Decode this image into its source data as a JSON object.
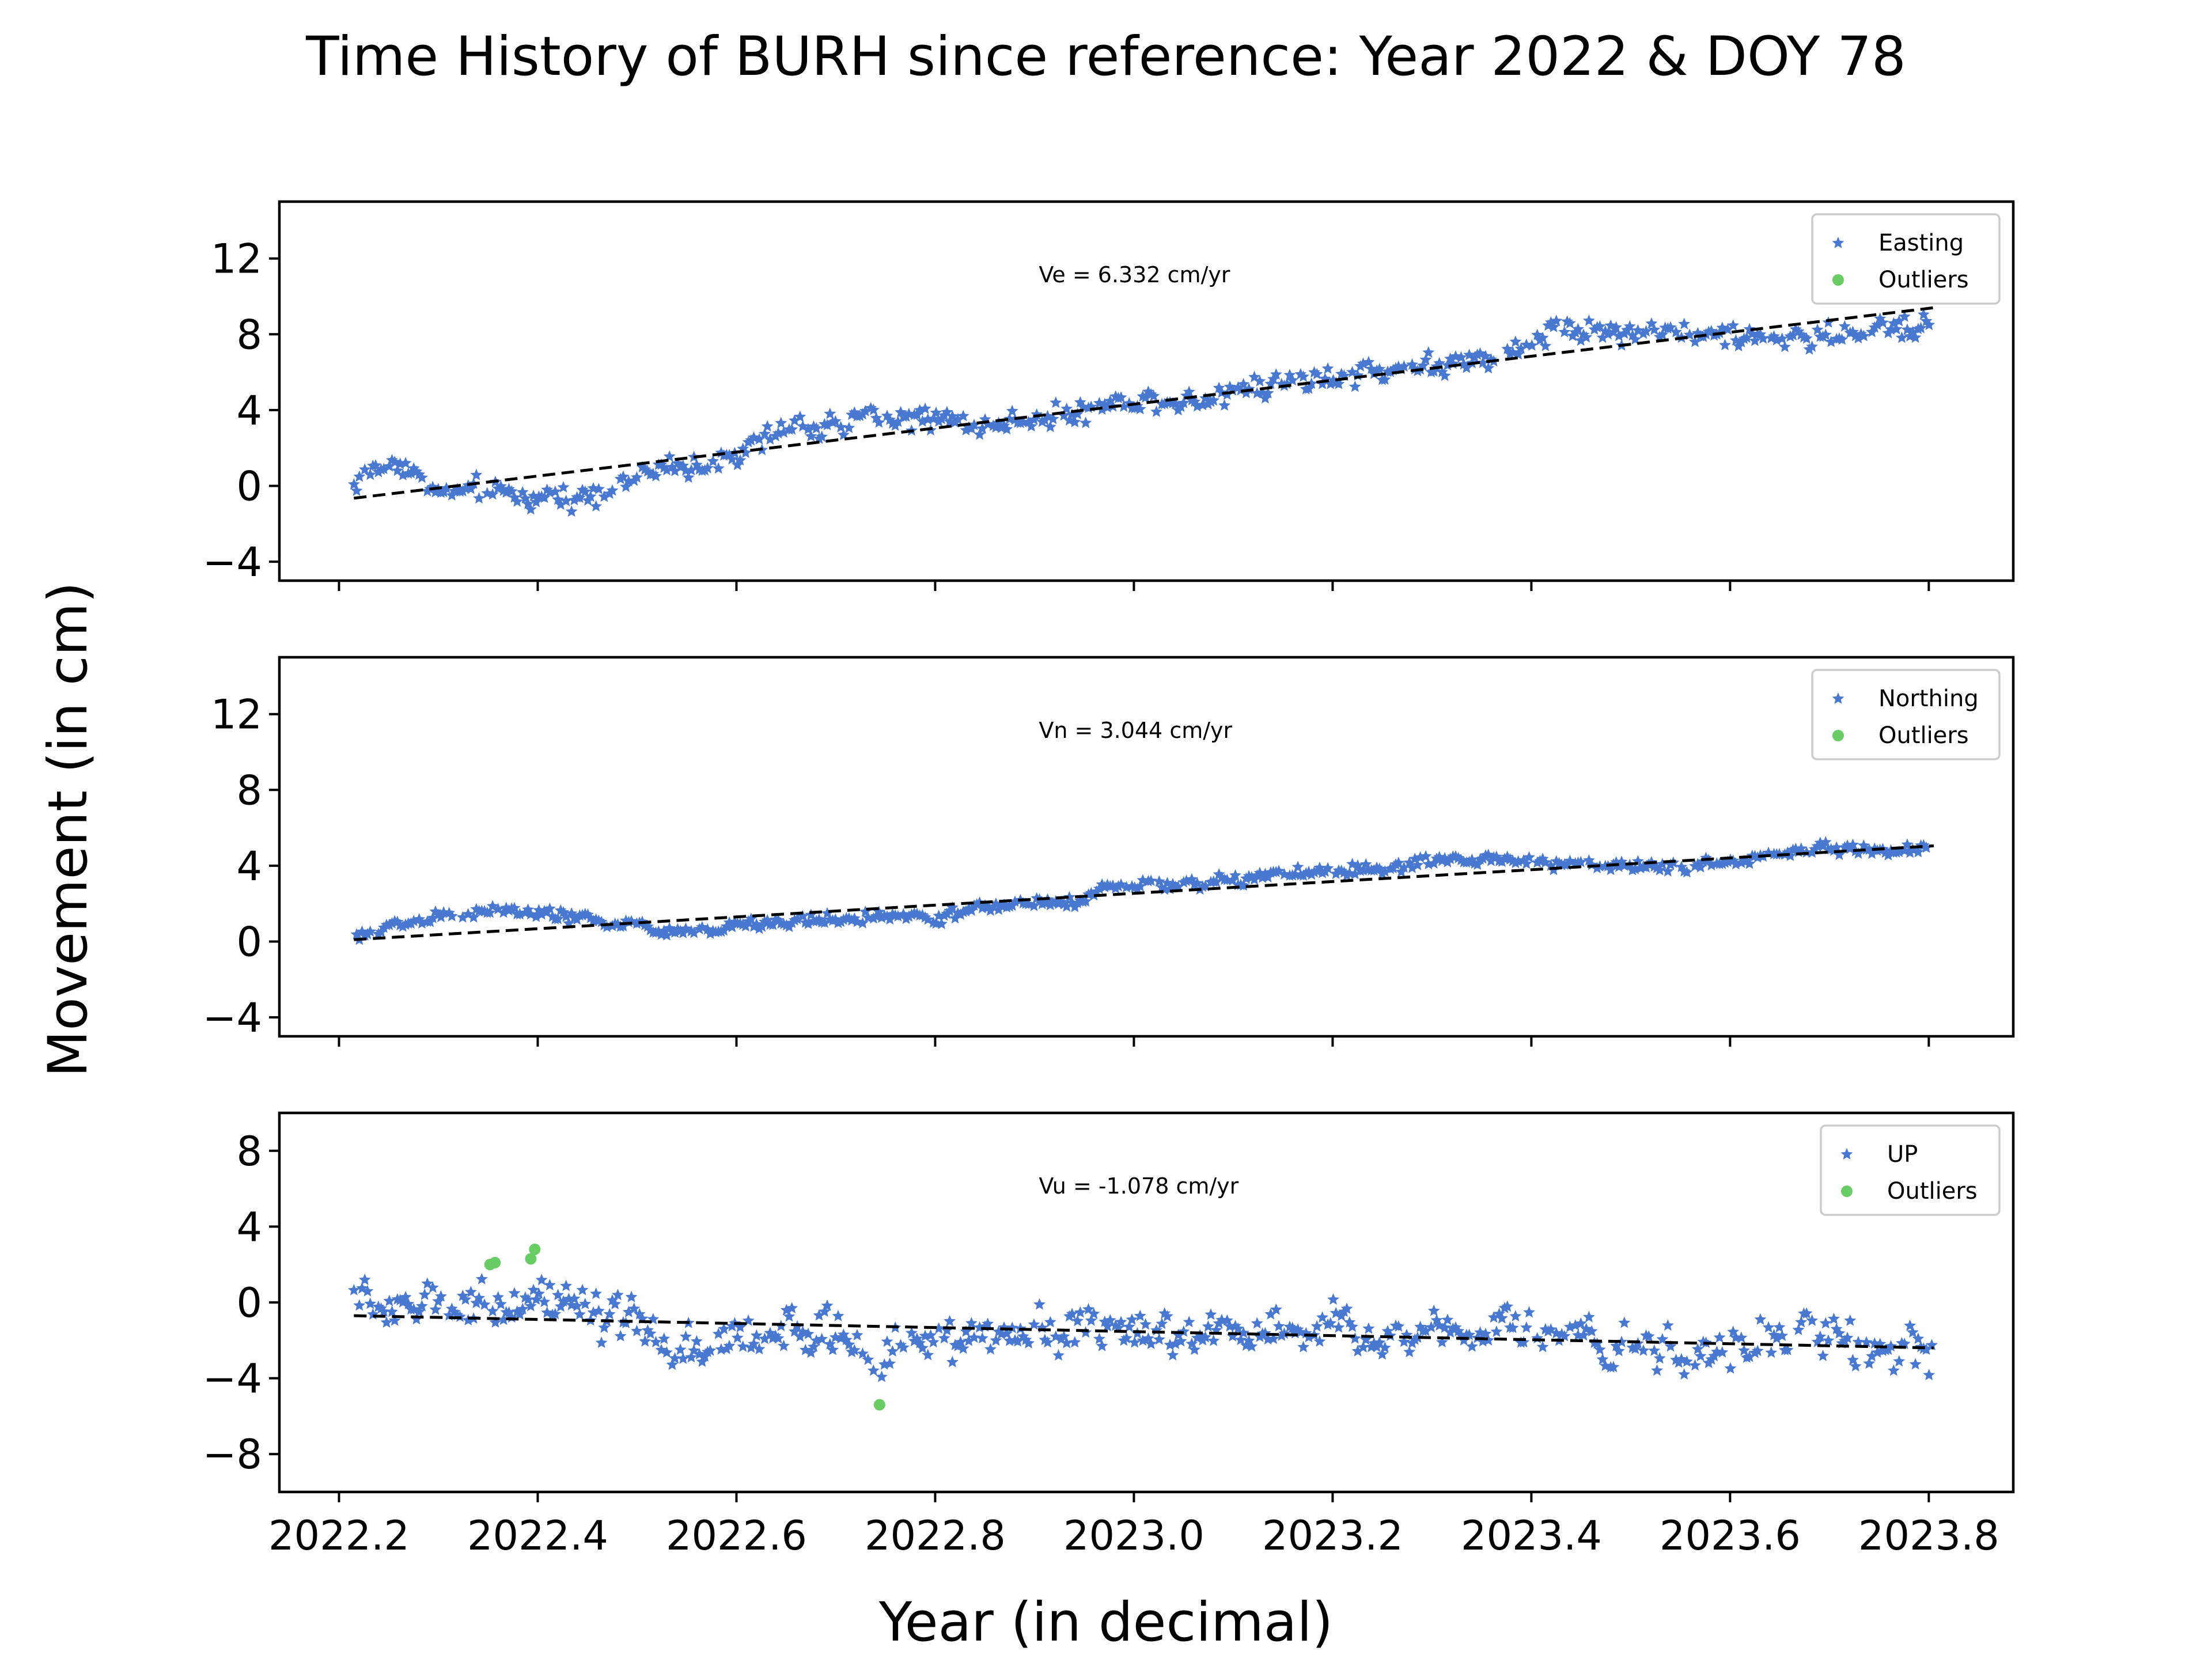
{
  "figure": {
    "title": "Time History of BURH since reference: Year 2022 & DOY 78",
    "xlabel": "Year (in decimal)",
    "ylabel": "Movement (in cm)"
  },
  "colors": {
    "data": "#4878d0",
    "outlier": "#6acc64",
    "trend": "#000000"
  },
  "chart_data": [
    {
      "type": "scatter",
      "panel": "easting",
      "xlim": [
        2022.14,
        2023.885
      ],
      "ylim": [
        -5,
        15
      ],
      "xticks": [
        2022.2,
        2022.4,
        2022.6,
        2022.8,
        2023.0,
        2023.2,
        2023.4,
        2023.6,
        2023.8
      ],
      "yticks": [
        -4,
        0,
        4,
        8,
        12
      ],
      "ytick_labels": [
        "−4",
        "0",
        "4",
        "8",
        "12"
      ],
      "show_xtick_labels": false,
      "annotation": "Ve =  6.332 cm/yr",
      "legend": [
        "Easting",
        "Outliers"
      ],
      "legend_position": "top-right",
      "trend": {
        "x": [
          2022.215,
          2023.805
        ],
        "y": [
          -0.65,
          9.4
        ]
      },
      "series_profile": {
        "x": [
          2022.215,
          2022.24,
          2022.26,
          2022.3,
          2022.35,
          2022.4,
          2022.45,
          2022.5,
          2022.55,
          2022.6,
          2022.65,
          2022.7,
          2022.75,
          2022.8,
          2022.85,
          2022.9,
          2022.95,
          2023.0,
          2023.05,
          2023.1,
          2023.15,
          2023.2,
          2023.25,
          2023.3,
          2023.35,
          2023.4,
          2023.43,
          2023.45,
          2023.5,
          2023.55,
          2023.6,
          2023.65,
          2023.7,
          2023.75,
          2023.805
        ],
        "y": [
          0.2,
          0.8,
          1.4,
          -0.4,
          -0.4,
          -0.6,
          -0.4,
          0.5,
          1.1,
          1.6,
          2.9,
          3.3,
          3.8,
          3.5,
          3.1,
          3.7,
          3.9,
          4.6,
          4.6,
          5.1,
          5.5,
          5.9,
          6.0,
          6.4,
          6.6,
          7.4,
          8.6,
          8.1,
          8.3,
          8.0,
          7.9,
          7.7,
          7.9,
          8.3,
          8.6
        ]
      },
      "noise": 0.45,
      "outliers": []
    },
    {
      "type": "scatter",
      "panel": "northing",
      "xlim": [
        2022.14,
        2023.885
      ],
      "ylim": [
        -5,
        15
      ],
      "xticks": [
        2022.2,
        2022.4,
        2022.6,
        2022.8,
        2023.0,
        2023.2,
        2023.4,
        2023.6,
        2023.8
      ],
      "yticks": [
        -4,
        0,
        4,
        8,
        12
      ],
      "ytick_labels": [
        "−4",
        "0",
        "4",
        "8",
        "12"
      ],
      "show_xtick_labels": false,
      "annotation": "Vn =  3.044 cm/yr",
      "legend": [
        "Northing",
        "Outliers"
      ],
      "legend_position": "top-right",
      "trend": {
        "x": [
          2022.215,
          2023.805
        ],
        "y": [
          0.1,
          5.05
        ]
      },
      "series_profile": {
        "x": [
          2022.215,
          2022.25,
          2022.3,
          2022.35,
          2022.4,
          2022.45,
          2022.5,
          2022.55,
          2022.6,
          2022.65,
          2022.7,
          2022.75,
          2022.8,
          2022.85,
          2022.9,
          2022.95,
          2022.97,
          2023.0,
          2023.05,
          2023.1,
          2023.15,
          2023.2,
          2023.25,
          2023.3,
          2023.35,
          2023.4,
          2023.45,
          2023.5,
          2023.55,
          2023.6,
          2023.65,
          2023.7,
          2023.75,
          2023.805
        ],
        "y": [
          0.1,
          0.9,
          1.3,
          1.6,
          1.5,
          1.2,
          0.8,
          0.5,
          0.8,
          1.0,
          1.2,
          1.4,
          1.2,
          1.8,
          2.1,
          2.1,
          3.0,
          2.9,
          3.0,
          3.2,
          3.5,
          3.7,
          3.8,
          4.1,
          4.4,
          4.2,
          4.1,
          4.0,
          3.7,
          4.3,
          4.6,
          4.9,
          4.8,
          4.9
        ]
      },
      "noise": 0.22,
      "outliers": []
    },
    {
      "type": "scatter",
      "panel": "up",
      "xlim": [
        2022.14,
        2023.885
      ],
      "ylim": [
        -10,
        10
      ],
      "xticks": [
        2022.2,
        2022.4,
        2022.6,
        2022.8,
        2023.0,
        2023.2,
        2023.4,
        2023.6,
        2023.8
      ],
      "xtick_labels": [
        "2022.2",
        "2022.4",
        "2022.6",
        "2022.8",
        "2023.0",
        "2023.2",
        "2023.4",
        "2023.6",
        "2023.8"
      ],
      "yticks": [
        -8,
        -4,
        0,
        4,
        8
      ],
      "ytick_labels": [
        "−8",
        "−4",
        "0",
        "4",
        "8"
      ],
      "show_xtick_labels": true,
      "annotation": "Vu = -1.078 cm/yr",
      "legend": [
        "UP",
        "Outliers"
      ],
      "legend_position": "top-right",
      "trend": {
        "x": [
          2022.215,
          2023.805
        ],
        "y": [
          -0.7,
          -2.4
        ]
      },
      "series_profile": {
        "x": [
          2022.215,
          2022.25,
          2022.3,
          2022.35,
          2022.4,
          2022.45,
          2022.5,
          2022.55,
          2022.6,
          2022.65,
          2022.7,
          2022.75,
          2022.8,
          2022.85,
          2022.9,
          2022.95,
          2023.0,
          2023.05,
          2023.1,
          2023.15,
          2023.2,
          2023.25,
          2023.3,
          2023.35,
          2023.4,
          2023.45,
          2023.5,
          2023.55,
          2023.6,
          2023.65,
          2023.7,
          2023.75,
          2023.805
        ],
        "y": [
          0.3,
          -0.3,
          0.0,
          0.2,
          0.0,
          -0.8,
          -1.3,
          -2.3,
          -1.9,
          -1.4,
          -1.8,
          -2.8,
          -2.2,
          -1.6,
          -1.5,
          -1.2,
          -1.8,
          -1.6,
          -1.4,
          -1.2,
          -1.0,
          -1.7,
          -1.3,
          -1.0,
          -1.3,
          -2.0,
          -2.0,
          -2.9,
          -2.7,
          -2.2,
          -1.6,
          -2.6,
          -3.0
        ]
      },
      "noise": 0.85,
      "outliers": [
        {
          "x": 2022.352,
          "y": 2.0
        },
        {
          "x": 2022.357,
          "y": 2.1
        },
        {
          "x": 2022.393,
          "y": 2.3
        },
        {
          "x": 2022.397,
          "y": 2.8
        },
        {
          "x": 2022.744,
          "y": -5.4
        }
      ]
    }
  ]
}
